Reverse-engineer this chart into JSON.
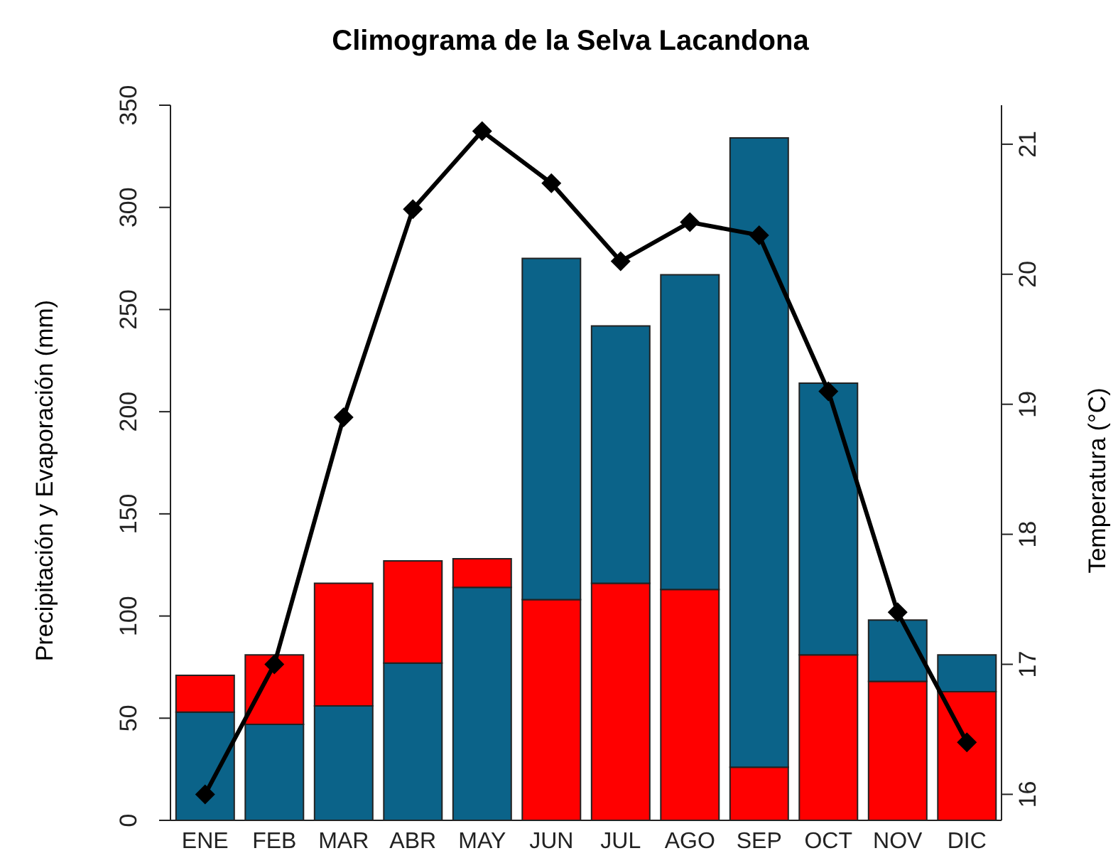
{
  "chart_data": {
    "type": "bar",
    "title": "Climograma de la Selva Lacandona",
    "ylabel": "Precipitación y Evaporación (mm)",
    "y2label": "Temperatura (°C)",
    "categories": [
      "ENE",
      "FEB",
      "MAR",
      "ABR",
      "MAY",
      "JUN",
      "JUL",
      "AGO",
      "SEP",
      "OCT",
      "NOV",
      "DIC"
    ],
    "stacked": true,
    "series": [
      {
        "values": [
          53,
          47,
          56,
          77,
          114,
          108,
          116,
          113,
          26,
          81,
          68,
          63
        ],
        "colors": [
          "#0b6389",
          "#0b6389",
          "#0b6389",
          "#0b6389",
          "#0b6389",
          "#ff0000",
          "#ff0000",
          "#ff0000",
          "#ff0000",
          "#ff0000",
          "#ff0000",
          "#ff0000"
        ]
      },
      {
        "values": [
          18,
          34,
          60,
          50,
          14,
          167,
          126,
          154,
          308,
          133,
          30,
          18
        ],
        "colors": [
          "#ff0000",
          "#ff0000",
          "#ff0000",
          "#ff0000",
          "#ff0000",
          "#0b6389",
          "#0b6389",
          "#0b6389",
          "#0b6389",
          "#0b6389",
          "#0b6389",
          "#0b6389"
        ]
      },
      {
        "type": "line",
        "axis": "y2",
        "color": "#000000",
        "marker": "diamond",
        "values": [
          16.0,
          17.0,
          18.9,
          20.5,
          21.1,
          20.7,
          20.1,
          20.4,
          20.3,
          19.1,
          17.4,
          16.4
        ]
      }
    ],
    "ylim": [
      0,
      350
    ],
    "yticks": [
      0,
      50,
      100,
      150,
      200,
      250,
      300,
      350
    ],
    "y2lim": [
      15.8,
      21.3
    ],
    "y2ticks": [
      16,
      17,
      18,
      19,
      20,
      21
    ],
    "grid": false,
    "legend": false
  }
}
